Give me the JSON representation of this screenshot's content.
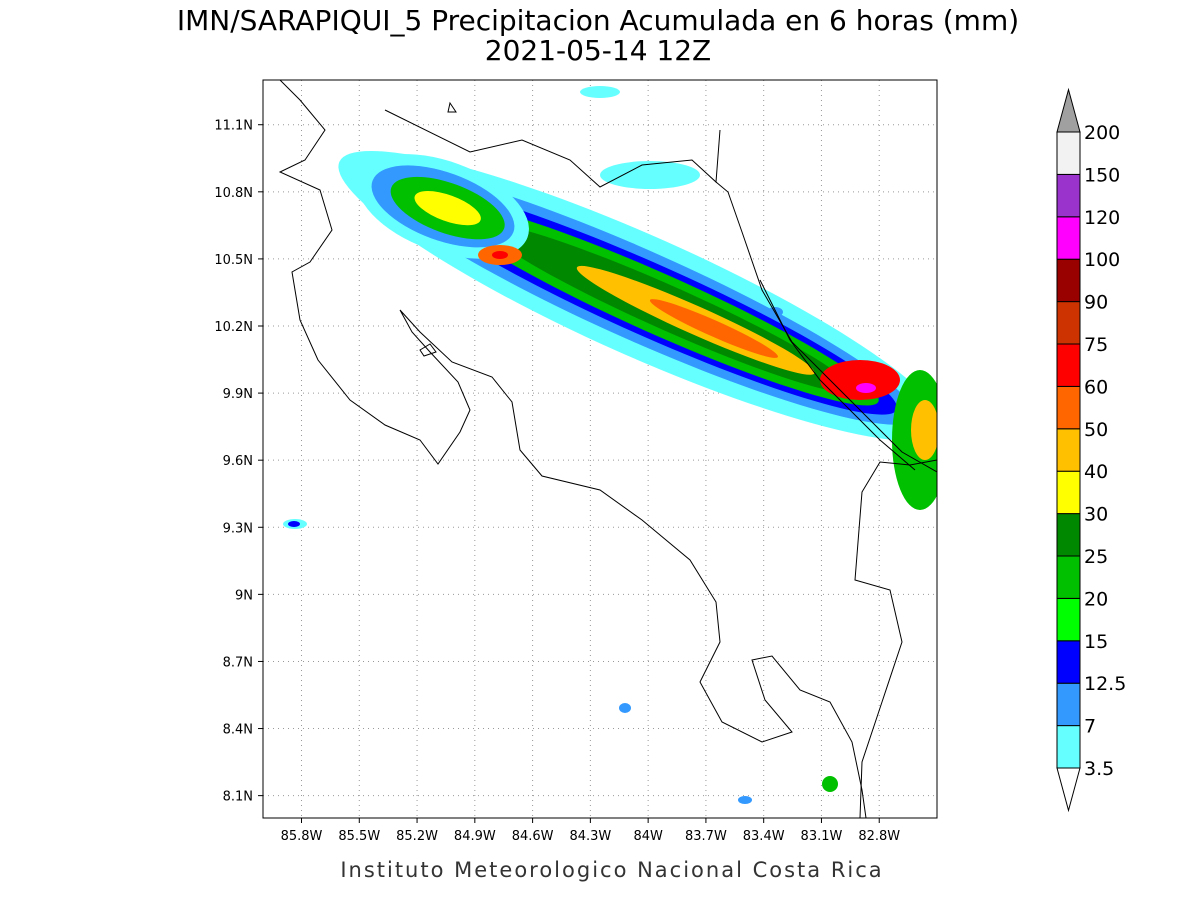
{
  "header": {
    "title": "IMN/SARAPIQUI_5 Precipitacion Acumulada en 6 horas (mm)",
    "subtitle": "2021-05-14 12Z"
  },
  "map": {
    "xlim": [
      -86.0,
      -82.5
    ],
    "ylim": [
      8.0,
      11.3
    ],
    "grid": true,
    "xticks": [
      {
        "value": -85.8,
        "label": "85.8W"
      },
      {
        "value": -85.5,
        "label": "85.5W"
      },
      {
        "value": -85.2,
        "label": "85.2W"
      },
      {
        "value": -84.9,
        "label": "84.9W"
      },
      {
        "value": -84.6,
        "label": "84.6W"
      },
      {
        "value": -84.3,
        "label": "84.3W"
      },
      {
        "value": -84.0,
        "label": "84W"
      },
      {
        "value": -83.7,
        "label": "83.7W"
      },
      {
        "value": -83.4,
        "label": "83.4W"
      },
      {
        "value": -83.1,
        "label": "83.1W"
      },
      {
        "value": -82.8,
        "label": "82.8W"
      }
    ],
    "yticks": [
      {
        "value": 8.1,
        "label": "8.1N"
      },
      {
        "value": 8.4,
        "label": "8.4N"
      },
      {
        "value": 8.7,
        "label": "8.7N"
      },
      {
        "value": 9.0,
        "label": "9N"
      },
      {
        "value": 9.3,
        "label": "9.3N"
      },
      {
        "value": 9.6,
        "label": "9.6N"
      },
      {
        "value": 9.9,
        "label": "9.9N"
      },
      {
        "value": 10.2,
        "label": "10.2N"
      },
      {
        "value": 10.5,
        "label": "10.5N"
      },
      {
        "value": 10.8,
        "label": "10.8N"
      },
      {
        "value": 11.1,
        "label": "11.1N"
      }
    ]
  },
  "colorbar": {
    "levels": [
      3.5,
      7,
      12.5,
      15,
      20,
      25,
      30,
      40,
      50,
      60,
      75,
      90,
      100,
      120,
      150,
      200
    ],
    "colors": [
      "#ffffff",
      "#66ffff",
      "#3399ff",
      "#0000ff",
      "#00ff00",
      "#00c000",
      "#008800",
      "#ffff00",
      "#ffc000",
      "#ff6600",
      "#ff0000",
      "#cc3300",
      "#990000",
      "#ff00ff",
      "#9933cc",
      "#f2f2f2",
      "#a0a0a0"
    ]
  },
  "footer": "Instituto Meteorologico Nacional Costa Rica"
}
